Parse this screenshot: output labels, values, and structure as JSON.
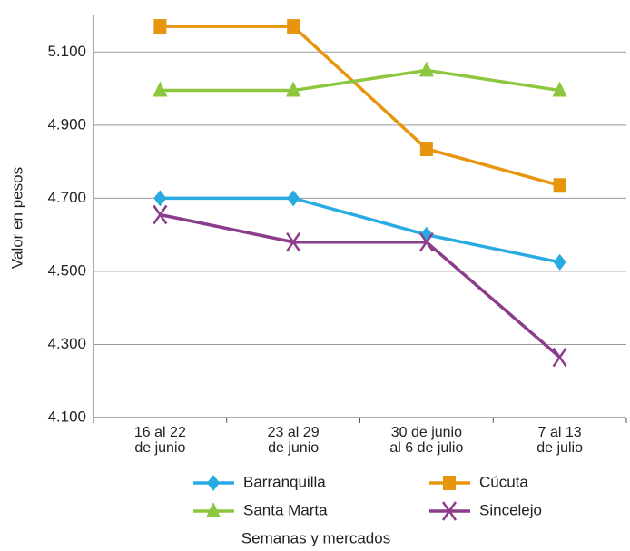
{
  "chart_data": {
    "type": "line",
    "x_label": "Semanas y mercados",
    "y_label": "Valor en pesos",
    "categories": [
      [
        "16 al 22",
        "de junio"
      ],
      [
        "23 al 29",
        "de junio"
      ],
      [
        "30 de junio",
        "al 6 de julio"
      ],
      [
        "7 al 13",
        "de julio"
      ]
    ],
    "series": [
      {
        "name": "Barranquilla",
        "color": "#29abe2",
        "marker": "diamond",
        "values": [
          4700,
          4700,
          4600,
          4525
        ]
      },
      {
        "name": "Cúcuta",
        "color": "#e8950e",
        "marker": "square",
        "values": [
          5170,
          5170,
          4835,
          4735
        ]
      },
      {
        "name": "Santa Marta",
        "color": "#8dc63f",
        "marker": "triangle",
        "values": [
          4995,
          4995,
          5050,
          4995
        ]
      },
      {
        "name": "Sincelejo",
        "color": "#8b3d8c",
        "marker": "x",
        "values": [
          4655,
          4580,
          4580,
          4265
        ]
      }
    ],
    "ylim": [
      4100,
      5200
    ],
    "yticks": [
      {
        "value": 4100,
        "label": "4.100"
      },
      {
        "value": 4300,
        "label": "4.300"
      },
      {
        "value": 4500,
        "label": "4.500"
      },
      {
        "value": 4700,
        "label": "4.700"
      },
      {
        "value": 4900,
        "label": "4.900"
      },
      {
        "value": 5100,
        "label": "5.100"
      }
    ],
    "grid": true
  }
}
